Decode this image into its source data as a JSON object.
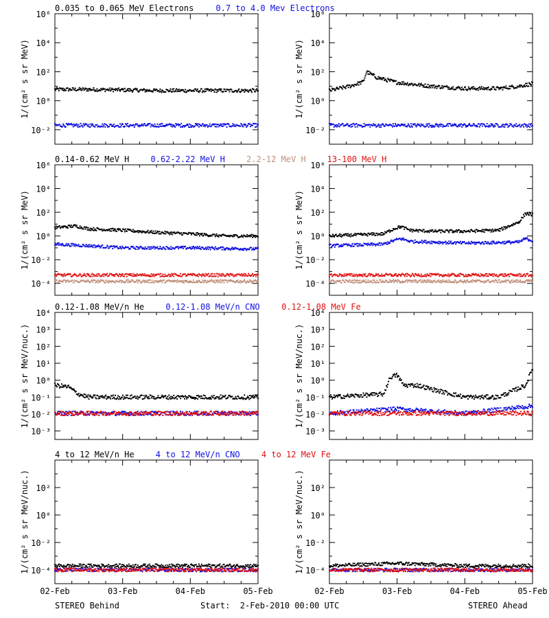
{
  "footer": {
    "left": "STEREO Behind",
    "center": "Start:  2-Feb-2010 00:00 UTC",
    "right": "STEREO Ahead"
  },
  "colors": {
    "black": "#000000",
    "blue": "#1010e0",
    "tan": "#c0907a",
    "red": "#e01010"
  },
  "x_ticks": [
    "02-Feb",
    "03-Feb",
    "04-Feb",
    "05-Feb"
  ],
  "rows": [
    {
      "legend": [
        {
          "text": "0.035 to 0.065 MeV Electrons",
          "color": "black"
        },
        {
          "text": "0.7 to 4.0 Mev Electrons",
          "color": "blue"
        }
      ],
      "ylabel": "1/(cm² s sr MeV)",
      "y_exp_range": [
        -3,
        6
      ],
      "y_tick_exps": [
        -2,
        0,
        2,
        4,
        6
      ],
      "show_xlabels": false
    },
    {
      "legend": [
        {
          "text": "0.14-0.62 MeV H",
          "color": "black"
        },
        {
          "text": "0.62-2.22 MeV H",
          "color": "blue"
        },
        {
          "text": "2.2-12 MeV H",
          "color": "tan"
        },
        {
          "text": "13-100 MeV H",
          "color": "red"
        }
      ],
      "ylabel": "1/(cm² s sr MeV)",
      "y_exp_range": [
        -5,
        6
      ],
      "y_tick_exps": [
        -4,
        -2,
        0,
        2,
        4,
        6
      ],
      "show_xlabels": false
    },
    {
      "legend": [
        {
          "text": "0.12-1.08 MeV/n He",
          "color": "black"
        },
        {
          "text": "0.12-1.08 MeV/n CNO",
          "color": "blue"
        },
        {
          "text": "0.12-1.08 MeV Fe",
          "color": "red"
        }
      ],
      "ylabel": "1/(cm² s sr MeV/nuc.)",
      "y_exp_range": [
        -3.5,
        4
      ],
      "y_tick_exps": [
        -3,
        -2,
        -1,
        0,
        1,
        2,
        3,
        4
      ],
      "show_xlabels": false
    },
    {
      "legend": [
        {
          "text": "4 to 12 MeV/n He",
          "color": "black"
        },
        {
          "text": "4 to 12 MeV/n CNO",
          "color": "blue"
        },
        {
          "text": "4 to 12 MeV Fe",
          "color": "red"
        }
      ],
      "ylabel": "1/(cm² s sr MeV/nuc.)",
      "y_exp_range": [
        -5,
        4
      ],
      "y_tick_exps": [
        -4,
        -2,
        0,
        2
      ],
      "show_xlabels": true
    }
  ],
  "chart_data": [
    {
      "panel": "behind-electrons",
      "type": "scatter",
      "x_unit": "days since 02-Feb",
      "y_scale": "log",
      "series": [
        {
          "name": "0.035 to 0.065 MeV Electrons",
          "color": "black",
          "points": [
            [
              0,
              6
            ],
            [
              0.5,
              6
            ],
            [
              1,
              5.5
            ],
            [
              1.5,
              5
            ],
            [
              2,
              5
            ],
            [
              2.5,
              5
            ],
            [
              3,
              5
            ]
          ]
        },
        {
          "name": "0.7 to 4.0 Mev Electrons",
          "color": "blue",
          "points": [
            [
              0,
              0.02
            ],
            [
              1,
              0.02
            ],
            [
              2,
              0.02
            ],
            [
              3,
              0.02
            ]
          ]
        }
      ]
    },
    {
      "panel": "ahead-electrons",
      "type": "scatter",
      "x_unit": "days since 02-Feb",
      "y_scale": "log",
      "series": [
        {
          "name": "0.035 to 0.065 MeV Electrons",
          "color": "black",
          "points": [
            [
              0,
              5
            ],
            [
              0.3,
              10
            ],
            [
              0.5,
              20
            ],
            [
              0.55,
              100
            ],
            [
              0.7,
              40
            ],
            [
              1,
              18
            ],
            [
              1.5,
              10
            ],
            [
              2,
              7
            ],
            [
              2.5,
              7
            ],
            [
              2.8,
              10
            ],
            [
              3,
              15
            ]
          ]
        },
        {
          "name": "0.7 to 4.0 Mev Electrons",
          "color": "blue",
          "points": [
            [
              0,
              0.02
            ],
            [
              1,
              0.02
            ],
            [
              2,
              0.02
            ],
            [
              3,
              0.02
            ]
          ]
        }
      ]
    },
    {
      "panel": "behind-protons",
      "type": "scatter",
      "x_unit": "days since 02-Feb",
      "y_scale": "log",
      "series": [
        {
          "name": "0.14-0.62 MeV H",
          "color": "black",
          "points": [
            [
              0,
              5
            ],
            [
              0.3,
              7
            ],
            [
              0.5,
              4
            ],
            [
              1,
              3
            ],
            [
              1.5,
              2
            ],
            [
              2,
              1.5
            ],
            [
              2.5,
              1
            ],
            [
              3,
              1
            ]
          ]
        },
        {
          "name": "0.62-2.22 MeV H",
          "color": "blue",
          "points": [
            [
              0,
              0.2
            ],
            [
              0.5,
              0.15
            ],
            [
              1,
              0.1
            ],
            [
              2,
              0.1
            ],
            [
              3,
              0.08
            ]
          ]
        },
        {
          "name": "2.2-12 MeV H",
          "color": "tan",
          "points": [
            [
              0,
              0.00015
            ],
            [
              1,
              0.00015
            ],
            [
              2,
              0.00015
            ],
            [
              3,
              0.00015
            ]
          ]
        },
        {
          "name": "13-100 MeV H",
          "color": "red",
          "points": [
            [
              0,
              0.0005
            ],
            [
              1,
              0.0005
            ],
            [
              2,
              0.0005
            ],
            [
              3,
              0.0005
            ]
          ]
        }
      ]
    },
    {
      "panel": "ahead-protons",
      "type": "scatter",
      "x_unit": "days since 02-Feb",
      "y_scale": "log",
      "series": [
        {
          "name": "0.14-0.62 MeV H",
          "color": "black",
          "points": [
            [
              0,
              1
            ],
            [
              0.8,
              1.5
            ],
            [
              0.95,
              4
            ],
            [
              1.05,
              6
            ],
            [
              1.2,
              3
            ],
            [
              1.5,
              2.5
            ],
            [
              2,
              2.5
            ],
            [
              2.5,
              3
            ],
            [
              2.8,
              15
            ],
            [
              2.9,
              80
            ],
            [
              3,
              60
            ]
          ]
        },
        {
          "name": "0.62-2.22 MeV H",
          "color": "blue",
          "points": [
            [
              0,
              0.15
            ],
            [
              0.8,
              0.2
            ],
            [
              0.95,
              0.4
            ],
            [
              1.05,
              0.6
            ],
            [
              1.2,
              0.35
            ],
            [
              2,
              0.25
            ],
            [
              2.8,
              0.3
            ],
            [
              2.9,
              0.6
            ],
            [
              3,
              0.4
            ]
          ]
        },
        {
          "name": "2.2-12 MeV H",
          "color": "tan",
          "points": [
            [
              0,
              0.00015
            ],
            [
              1,
              0.00015
            ],
            [
              2,
              0.00015
            ],
            [
              3,
              0.00015
            ]
          ]
        },
        {
          "name": "13-100 MeV H",
          "color": "red",
          "points": [
            [
              0,
              0.0005
            ],
            [
              1,
              0.0005
            ],
            [
              2,
              0.0005
            ],
            [
              3,
              0.0005
            ]
          ]
        }
      ]
    },
    {
      "panel": "behind-heavy",
      "type": "scatter",
      "x_unit": "days since 02-Feb",
      "y_scale": "log",
      "series": [
        {
          "name": "0.12-1.08 MeV/n He",
          "color": "black",
          "points": [
            [
              0,
              0.5
            ],
            [
              0.2,
              0.4
            ],
            [
              0.35,
              0.15
            ],
            [
              0.5,
              0.1
            ],
            [
              1,
              0.1
            ],
            [
              2,
              0.1
            ],
            [
              3,
              0.1
            ]
          ]
        },
        {
          "name": "0.12-1.08 MeV/n CNO",
          "color": "blue",
          "points": [
            [
              0,
              0.011
            ],
            [
              1,
              0.011
            ],
            [
              2,
              0.011
            ],
            [
              3,
              0.011
            ]
          ]
        },
        {
          "name": "0.12-1.08 MeV Fe",
          "color": "red",
          "points": [
            [
              0,
              0.011
            ],
            [
              1,
              0.011
            ],
            [
              2,
              0.011
            ],
            [
              3,
              0.011
            ]
          ]
        }
      ]
    },
    {
      "panel": "ahead-heavy",
      "type": "scatter",
      "x_unit": "days since 02-Feb",
      "y_scale": "log",
      "series": [
        {
          "name": "0.12-1.08 MeV/n He",
          "color": "black",
          "points": [
            [
              0,
              0.1
            ],
            [
              0.8,
              0.15
            ],
            [
              0.9,
              1.5
            ],
            [
              1.0,
              2
            ],
            [
              1.1,
              0.5
            ],
            [
              1.3,
              0.5
            ],
            [
              1.5,
              0.3
            ],
            [
              2,
              0.1
            ],
            [
              2.5,
              0.1
            ],
            [
              2.9,
              0.5
            ],
            [
              3,
              5
            ]
          ]
        },
        {
          "name": "0.12-1.08 MeV/n CNO",
          "color": "blue",
          "points": [
            [
              0,
              0.011
            ],
            [
              1,
              0.02
            ],
            [
              2,
              0.011
            ],
            [
              3,
              0.03
            ]
          ]
        },
        {
          "name": "0.12-1.08 MeV Fe",
          "color": "red",
          "points": [
            [
              0,
              0.011
            ],
            [
              1,
              0.011
            ],
            [
              2,
              0.011
            ],
            [
              3,
              0.011
            ]
          ]
        }
      ]
    },
    {
      "panel": "behind-high",
      "type": "scatter",
      "x_unit": "days since 02-Feb",
      "y_scale": "log",
      "series": [
        {
          "name": "4 to 12 MeV/n He",
          "color": "black",
          "points": [
            [
              0,
              0.0002
            ],
            [
              1,
              0.0002
            ],
            [
              2,
              0.0002
            ],
            [
              3,
              0.0002
            ]
          ]
        },
        {
          "name": "4 to 12 MeV/n CNO",
          "color": "blue",
          "points": [
            [
              0,
              0.0001
            ],
            [
              1,
              0.0001
            ],
            [
              2,
              0.0001
            ],
            [
              3,
              0.0001
            ]
          ]
        },
        {
          "name": "4 to 12 MeV Fe",
          "color": "red",
          "points": [
            [
              0,
              0.0001
            ],
            [
              3,
              0.0001
            ]
          ]
        }
      ]
    },
    {
      "panel": "ahead-high",
      "type": "scatter",
      "x_unit": "days since 02-Feb",
      "y_scale": "log",
      "series": [
        {
          "name": "4 to 12 MeV/n He",
          "color": "black",
          "points": [
            [
              0,
              0.0002
            ],
            [
              1,
              0.0003
            ],
            [
              2,
              0.0002
            ],
            [
              3,
              0.0002
            ]
          ]
        },
        {
          "name": "4 to 12 MeV/n CNO",
          "color": "blue",
          "points": [
            [
              0,
              0.0001
            ],
            [
              1,
              0.0001
            ],
            [
              2,
              0.0001
            ],
            [
              3,
              0.0001
            ]
          ]
        },
        {
          "name": "4 to 12 MeV Fe",
          "color": "red",
          "points": [
            [
              0,
              0.0001
            ],
            [
              3,
              0.0001
            ]
          ]
        }
      ]
    }
  ]
}
